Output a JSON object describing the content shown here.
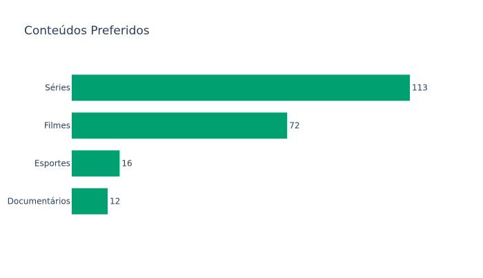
{
  "chart_data": {
    "type": "bar",
    "orientation": "horizontal",
    "title": "Conteúdos Preferidos",
    "xlabel": "",
    "ylabel": "",
    "categories": [
      "Séries",
      "Filmes",
      "Esportes",
      "Documentários"
    ],
    "values": [
      113,
      72,
      16,
      12
    ],
    "xlim": [
      0,
      113
    ],
    "grid": false,
    "legend": "none",
    "bar_color": "#00a070",
    "text_color": "#2a3f5f"
  }
}
